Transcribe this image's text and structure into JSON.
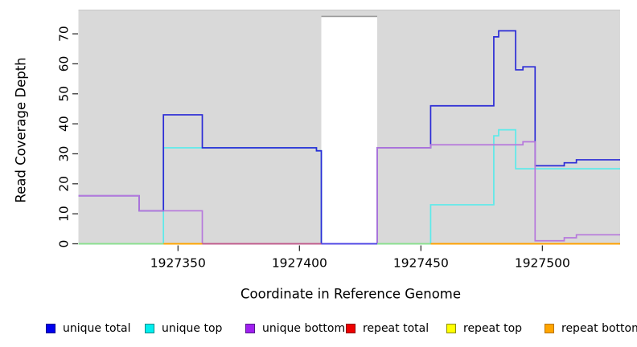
{
  "chart_data": {
    "type": "line",
    "step": true,
    "title": "",
    "xlabel": "Coordinate in Reference Genome",
    "ylabel": "Read Coverage Depth",
    "xlim": [
      1927309,
      1927532
    ],
    "ylim": [
      0,
      77.5
    ],
    "grid": false,
    "panel_bg": "#D9D9D9",
    "x_ticks": [
      "1927350",
      "1927400",
      "1927450",
      "1927500"
    ],
    "x_tick_values": [
      1927350,
      1927400,
      1927450,
      1927500
    ],
    "y_ticks": [
      "0",
      "10",
      "20",
      "30",
      "40",
      "50",
      "60",
      "70"
    ],
    "y_tick_values": [
      0,
      10,
      20,
      30,
      40,
      50,
      60,
      70
    ],
    "legend_position": "bottom",
    "masked_region": {
      "x_start": 1927409,
      "x_end": 1927432,
      "y_top_value": 75.8,
      "fill": "#FFFFFF",
      "edge_color": "#9A9A9A"
    },
    "series": [
      {
        "name": "unique total",
        "color": "#2B2BD6",
        "legend_fill": "#0000EE",
        "legend_border": "#00008B",
        "steps": [
          [
            1927309,
            16
          ],
          [
            1927334,
            11
          ],
          [
            1927344,
            43
          ],
          [
            1927360,
            32
          ],
          [
            1927407,
            31
          ],
          [
            1927409,
            0
          ],
          [
            1927432,
            32
          ],
          [
            1927454,
            46
          ],
          [
            1927480,
            69
          ],
          [
            1927482,
            71
          ],
          [
            1927489,
            58
          ],
          [
            1927492,
            59
          ],
          [
            1927497,
            26
          ],
          [
            1927509,
            27
          ],
          [
            1927514,
            28
          ]
        ]
      },
      {
        "name": "unique top",
        "color": "#5CEAEA",
        "legend_fill": "#00EEEE",
        "legend_border": "#008B8B",
        "steps": [
          [
            1927309,
            0
          ],
          [
            1927344,
            32
          ],
          [
            1927407,
            31
          ],
          [
            1927409,
            0
          ],
          [
            1927454,
            13
          ],
          [
            1927480,
            36
          ],
          [
            1927482,
            38
          ],
          [
            1927489,
            25
          ]
        ]
      },
      {
        "name": "unique bottom",
        "color": "#B678DC",
        "legend_fill": "#A020F0",
        "legend_border": "#551A8B",
        "steps": [
          [
            1927309,
            16
          ],
          [
            1927334,
            11
          ],
          [
            1927360,
            0
          ],
          [
            1927432,
            32
          ],
          [
            1927454,
            33
          ],
          [
            1927492,
            34
          ],
          [
            1927497,
            1
          ],
          [
            1927509,
            2
          ],
          [
            1927514,
            3
          ]
        ]
      },
      {
        "name": "repeat total",
        "color": "#DD2222",
        "legend_fill": "#EE0000",
        "legend_border": "#8B0000",
        "steps": [
          [
            1927309,
            0
          ]
        ]
      },
      {
        "name": "repeat top",
        "color": "#EEEE33",
        "legend_fill": "#FFFF00",
        "legend_border": "#8B8B00",
        "steps": [
          [
            1927309,
            0
          ]
        ]
      },
      {
        "name": "repeat bottom",
        "color": "#FFA000",
        "legend_fill": "#FFA500",
        "legend_border": "#B87400",
        "steps": [
          [
            1927309,
            0
          ]
        ]
      }
    ],
    "draw_order": [
      3,
      4,
      5,
      1,
      0,
      2
    ],
    "zero_line_render": [
      {
        "x_start": 1927309,
        "x_end": 1927344,
        "color": "#8CE08C"
      },
      {
        "x_start": 1927344,
        "x_end": 1927360,
        "color": "#FFA500"
      },
      {
        "x_start": 1927360,
        "x_end": 1927409,
        "color": "#C05A8C"
      },
      {
        "x_start": 1927409,
        "x_end": 1927432,
        "color": "#4A44E6"
      },
      {
        "x_start": 1927432,
        "x_end": 1927454,
        "color": "#8CE08C"
      },
      {
        "x_start": 1927454,
        "x_end": 1927532,
        "color": "#FFA000"
      }
    ]
  }
}
